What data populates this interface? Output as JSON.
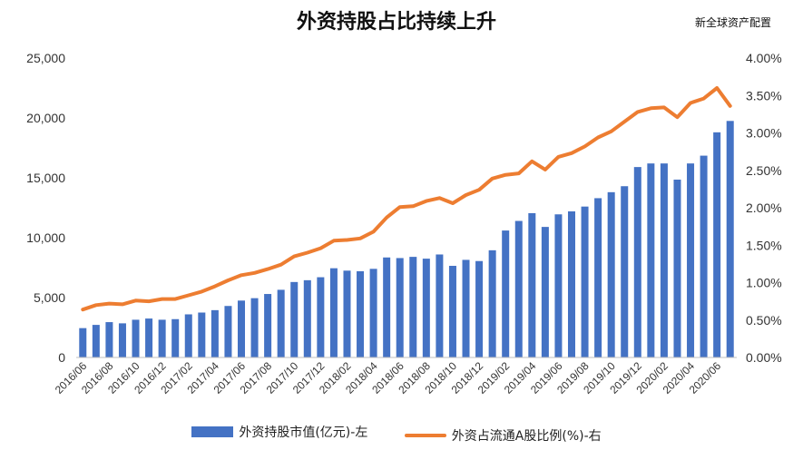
{
  "title": "外资持股占比持续上升",
  "source": "新全球资产配置",
  "chart_data": {
    "type": "bar+line",
    "title": "外资持股占比持续上升",
    "grid": false,
    "legend_position": "bottom",
    "y_left": {
      "ylim": [
        0,
        25000
      ],
      "ticks": [
        "0",
        "5,000",
        "10,000",
        "15,000",
        "20,000",
        "25,000"
      ]
    },
    "y_right": {
      "ylim": [
        0,
        4.0
      ],
      "ticks": [
        "0.00%",
        "0.50%",
        "1.00%",
        "1.50%",
        "2.00%",
        "2.50%",
        "3.00%",
        "3.50%",
        "4.00%"
      ]
    },
    "x_tick_labels": [
      "2016/06",
      "2016/08",
      "2016/10",
      "2016/12",
      "2017/02",
      "2017/04",
      "2017/06",
      "2017/08",
      "2017/10",
      "2017/12",
      "2018/02",
      "2018/04",
      "2018/06",
      "2018/08",
      "2018/10",
      "2018/12",
      "2019/02",
      "2019/04",
      "2019/06",
      "2019/08",
      "2019/10",
      "2019/12",
      "2020/02",
      "2020/04",
      "2020/06"
    ],
    "categories": [
      "2016/06",
      "2016/07",
      "2016/08",
      "2016/09",
      "2016/10",
      "2016/11",
      "2016/12",
      "2017/01",
      "2017/02",
      "2017/03",
      "2017/04",
      "2017/05",
      "2017/06",
      "2017/07",
      "2017/08",
      "2017/09",
      "2017/10",
      "2017/11",
      "2017/12",
      "2018/01",
      "2018/02",
      "2018/03",
      "2018/04",
      "2018/05",
      "2018/06",
      "2018/07",
      "2018/08",
      "2018/09",
      "2018/10",
      "2018/11",
      "2018/12",
      "2019/01",
      "2019/02",
      "2019/03",
      "2019/04",
      "2019/05",
      "2019/06",
      "2019/07",
      "2019/08",
      "2019/09",
      "2019/10",
      "2019/11",
      "2019/12",
      "2020/01",
      "2020/02",
      "2020/03",
      "2020/04",
      "2020/05",
      "2020/06",
      "2020/07"
    ],
    "series": [
      {
        "name": "外资持股市值(亿元)-左",
        "type": "bar",
        "axis": "left",
        "color": "#4472C4",
        "values": [
          2450,
          2720,
          2950,
          2850,
          3150,
          3250,
          3150,
          3200,
          3600,
          3750,
          3950,
          4300,
          4750,
          4950,
          5300,
          5650,
          6300,
          6450,
          6700,
          7450,
          7250,
          7200,
          7400,
          8350,
          8300,
          8400,
          8250,
          8600,
          7650,
          8150,
          8050,
          8950,
          10600,
          11400,
          12050,
          10900,
          11950,
          12200,
          12600,
          13300,
          13800,
          14300,
          15900,
          16200,
          16200,
          14850,
          16200,
          16850,
          18800,
          19750
        ]
      },
      {
        "name": "外资占流通A股比例(%)-右",
        "type": "line",
        "axis": "right",
        "color": "#ED7D31",
        "values": [
          0.64,
          0.7,
          0.72,
          0.71,
          0.76,
          0.75,
          0.78,
          0.78,
          0.83,
          0.88,
          0.95,
          1.03,
          1.1,
          1.13,
          1.18,
          1.24,
          1.35,
          1.4,
          1.46,
          1.56,
          1.57,
          1.59,
          1.68,
          1.87,
          2.01,
          2.02,
          2.09,
          2.13,
          2.06,
          2.17,
          2.24,
          2.39,
          2.44,
          2.46,
          2.62,
          2.51,
          2.68,
          2.73,
          2.82,
          2.94,
          3.02,
          3.15,
          3.28,
          3.33,
          3.34,
          3.21,
          3.4,
          3.46,
          3.6,
          3.36
        ]
      }
    ]
  },
  "legend": {
    "bar_label": "外资持股市值(亿元)-左",
    "line_label": "外资占流通A股比例(%)-右"
  }
}
